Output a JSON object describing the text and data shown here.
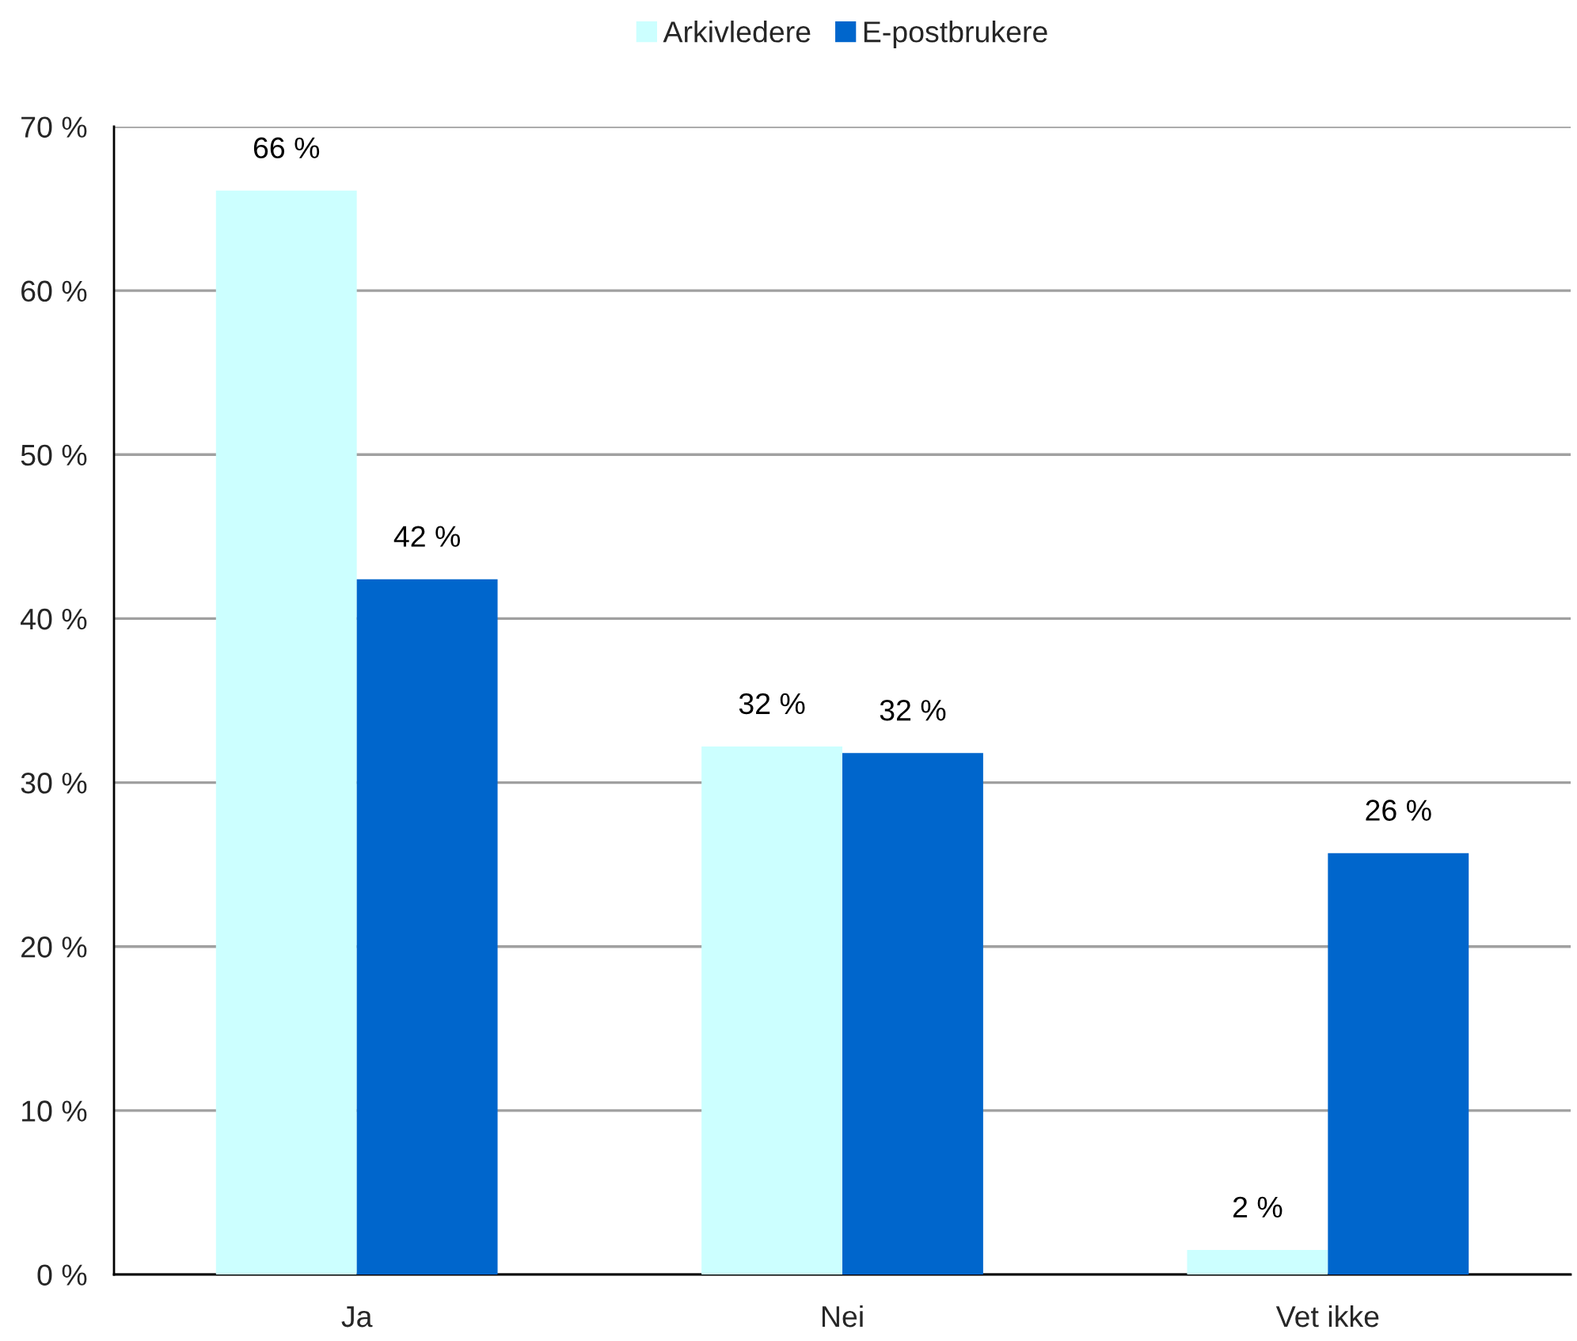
{
  "chart_data": {
    "type": "bar",
    "categories": [
      "Ja",
      "Nei",
      "Vet ikke"
    ],
    "series": [
      {
        "name": "Arkivledere",
        "color": "#ccffff",
        "values": [
          66.1,
          32.2,
          1.5
        ],
        "value_labels": [
          "66 %",
          "32 %",
          "2 %"
        ]
      },
      {
        "name": "E-postbrukere",
        "color": "#0066cc",
        "values": [
          42.4,
          31.8,
          25.7
        ],
        "value_labels": [
          "42 %",
          "32 %",
          "26 %"
        ]
      }
    ],
    "ylim": [
      0,
      70
    ],
    "yticks": [
      {
        "value": 0,
        "label": "0 %"
      },
      {
        "value": 10,
        "label": "10 %"
      },
      {
        "value": 20,
        "label": "20 %"
      },
      {
        "value": 30,
        "label": "30 %"
      },
      {
        "value": 40,
        "label": "40 %"
      },
      {
        "value": 50,
        "label": "50 %"
      },
      {
        "value": 60,
        "label": "60 %"
      },
      {
        "value": 70,
        "label": "70 %"
      }
    ],
    "grid": "y",
    "legend": "top"
  }
}
